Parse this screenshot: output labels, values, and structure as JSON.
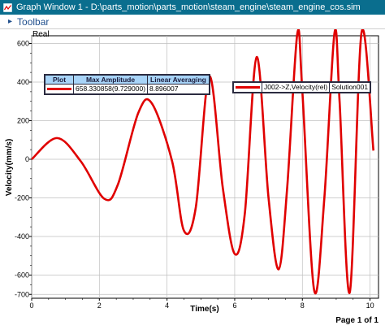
{
  "window": {
    "title": "Graph Window 1 - D:\\parts_motion\\parts_motion\\steam_engine\\steam_engine_cos.sim"
  },
  "toolbar": {
    "label": "Toolbar"
  },
  "graph": {
    "corner_label": "Real",
    "page_indicator": "Page 1 of 1"
  },
  "stats_table": {
    "headers": [
      "Plot",
      "Max Amplitude",
      "Linear Averaging"
    ],
    "rows": [
      {
        "swatch_color": "#e00000",
        "max_amplitude": "658.330858(9.729000)",
        "linear_averaging": "8.896007"
      }
    ]
  },
  "legend": {
    "entries": [
      {
        "swatch_color": "#e00000",
        "label": "J002->Z,Velocity(rel)",
        "solution": "Solution001"
      }
    ]
  },
  "chart_data": {
    "type": "line",
    "xlabel": "Time(s)",
    "ylabel": "Velocity(mm/s)",
    "xlim": [
      0,
      10.25
    ],
    "ylim": [
      -720,
      640
    ],
    "x_ticks": [
      0,
      2,
      4,
      6,
      8,
      10
    ],
    "x_tick_labels": [
      "0",
      "2",
      "4",
      "6",
      "8",
      "10"
    ],
    "y_ticks": [
      -700,
      -600,
      -400,
      -200,
      0,
      200,
      400,
      600
    ],
    "y_tick_labels": [
      "-700",
      "-600",
      "-400",
      "-200",
      "0",
      "200",
      "400",
      "600"
    ],
    "grid": true,
    "series": [
      {
        "color": "#e00000",
        "x": [
          0,
          0.75,
          1.45,
          2.15,
          2.55,
          3.15,
          3.55,
          4.15,
          4.5,
          4.85,
          5.25,
          5.65,
          6.0,
          6.3,
          6.65,
          7.0,
          7.3,
          7.55,
          7.85,
          8.0,
          8.35,
          8.65,
          8.95,
          9.1,
          9.4,
          9.75,
          10.1
        ],
        "y": [
          0,
          110,
          -10,
          -205,
          -130,
          240,
          290,
          -10,
          -370,
          -250,
          430,
          -150,
          -490,
          -280,
          530,
          -200,
          -570,
          -150,
          650,
          350,
          -680,
          -200,
          655,
          300,
          -690,
          658,
          45
        ],
        "smooth": true
      }
    ]
  }
}
